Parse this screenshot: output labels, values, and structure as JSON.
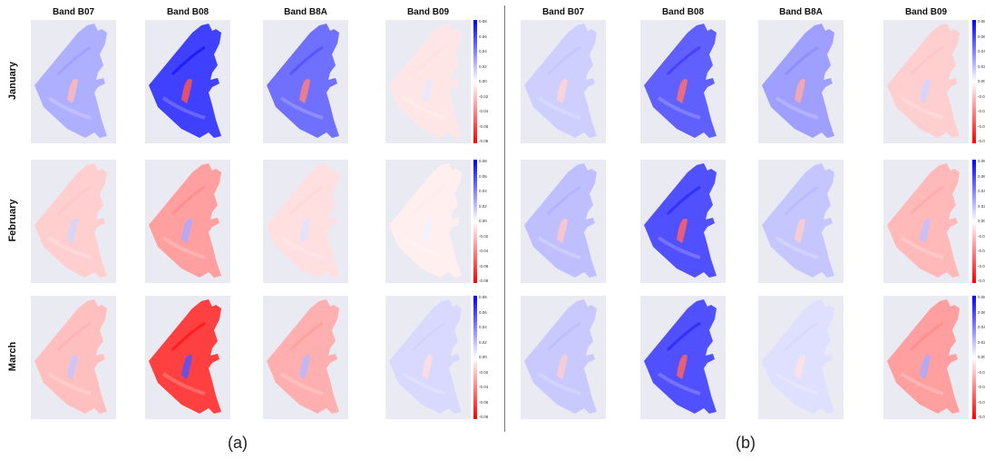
{
  "panels": [
    {
      "id": "a",
      "caption": "(a)",
      "columns": [
        "Band B07",
        "Band B08",
        "Band B8A",
        "Band B09"
      ],
      "rows": [
        "January",
        "February",
        "March"
      ],
      "colorbar_ticks": [
        "0.08",
        "0.06",
        "0.04",
        "0.02",
        "0.00",
        "-0.02",
        "-0.04",
        "-0.06",
        "-0.08"
      ],
      "tile_values": [
        [
          0.025,
          0.06,
          0.045,
          -0.008
        ],
        [
          -0.015,
          -0.03,
          -0.01,
          -0.005
        ],
        [
          -0.02,
          -0.06,
          -0.025,
          0.012
        ]
      ]
    },
    {
      "id": "b",
      "caption": "(b)",
      "columns": [
        "Band B07",
        "Band B08",
        "Band B8A",
        "Band B09"
      ],
      "rows": [
        "January",
        "February",
        "March"
      ],
      "colorbar_ticks": [
        "0.08",
        "0.06",
        "0.04",
        "0.02",
        "0.00",
        "-0.02",
        "-0.04",
        "-0.06",
        "-0.08"
      ],
      "tile_values": [
        [
          0.015,
          0.05,
          0.03,
          -0.015
        ],
        [
          0.02,
          0.055,
          0.018,
          -0.022
        ],
        [
          0.017,
          0.055,
          0.01,
          -0.03
        ]
      ]
    }
  ],
  "colors": {
    "positive": "#0000ff",
    "negative": "#ff0000",
    "neutral": "#ffffff",
    "background": "#eaeaf2"
  }
}
